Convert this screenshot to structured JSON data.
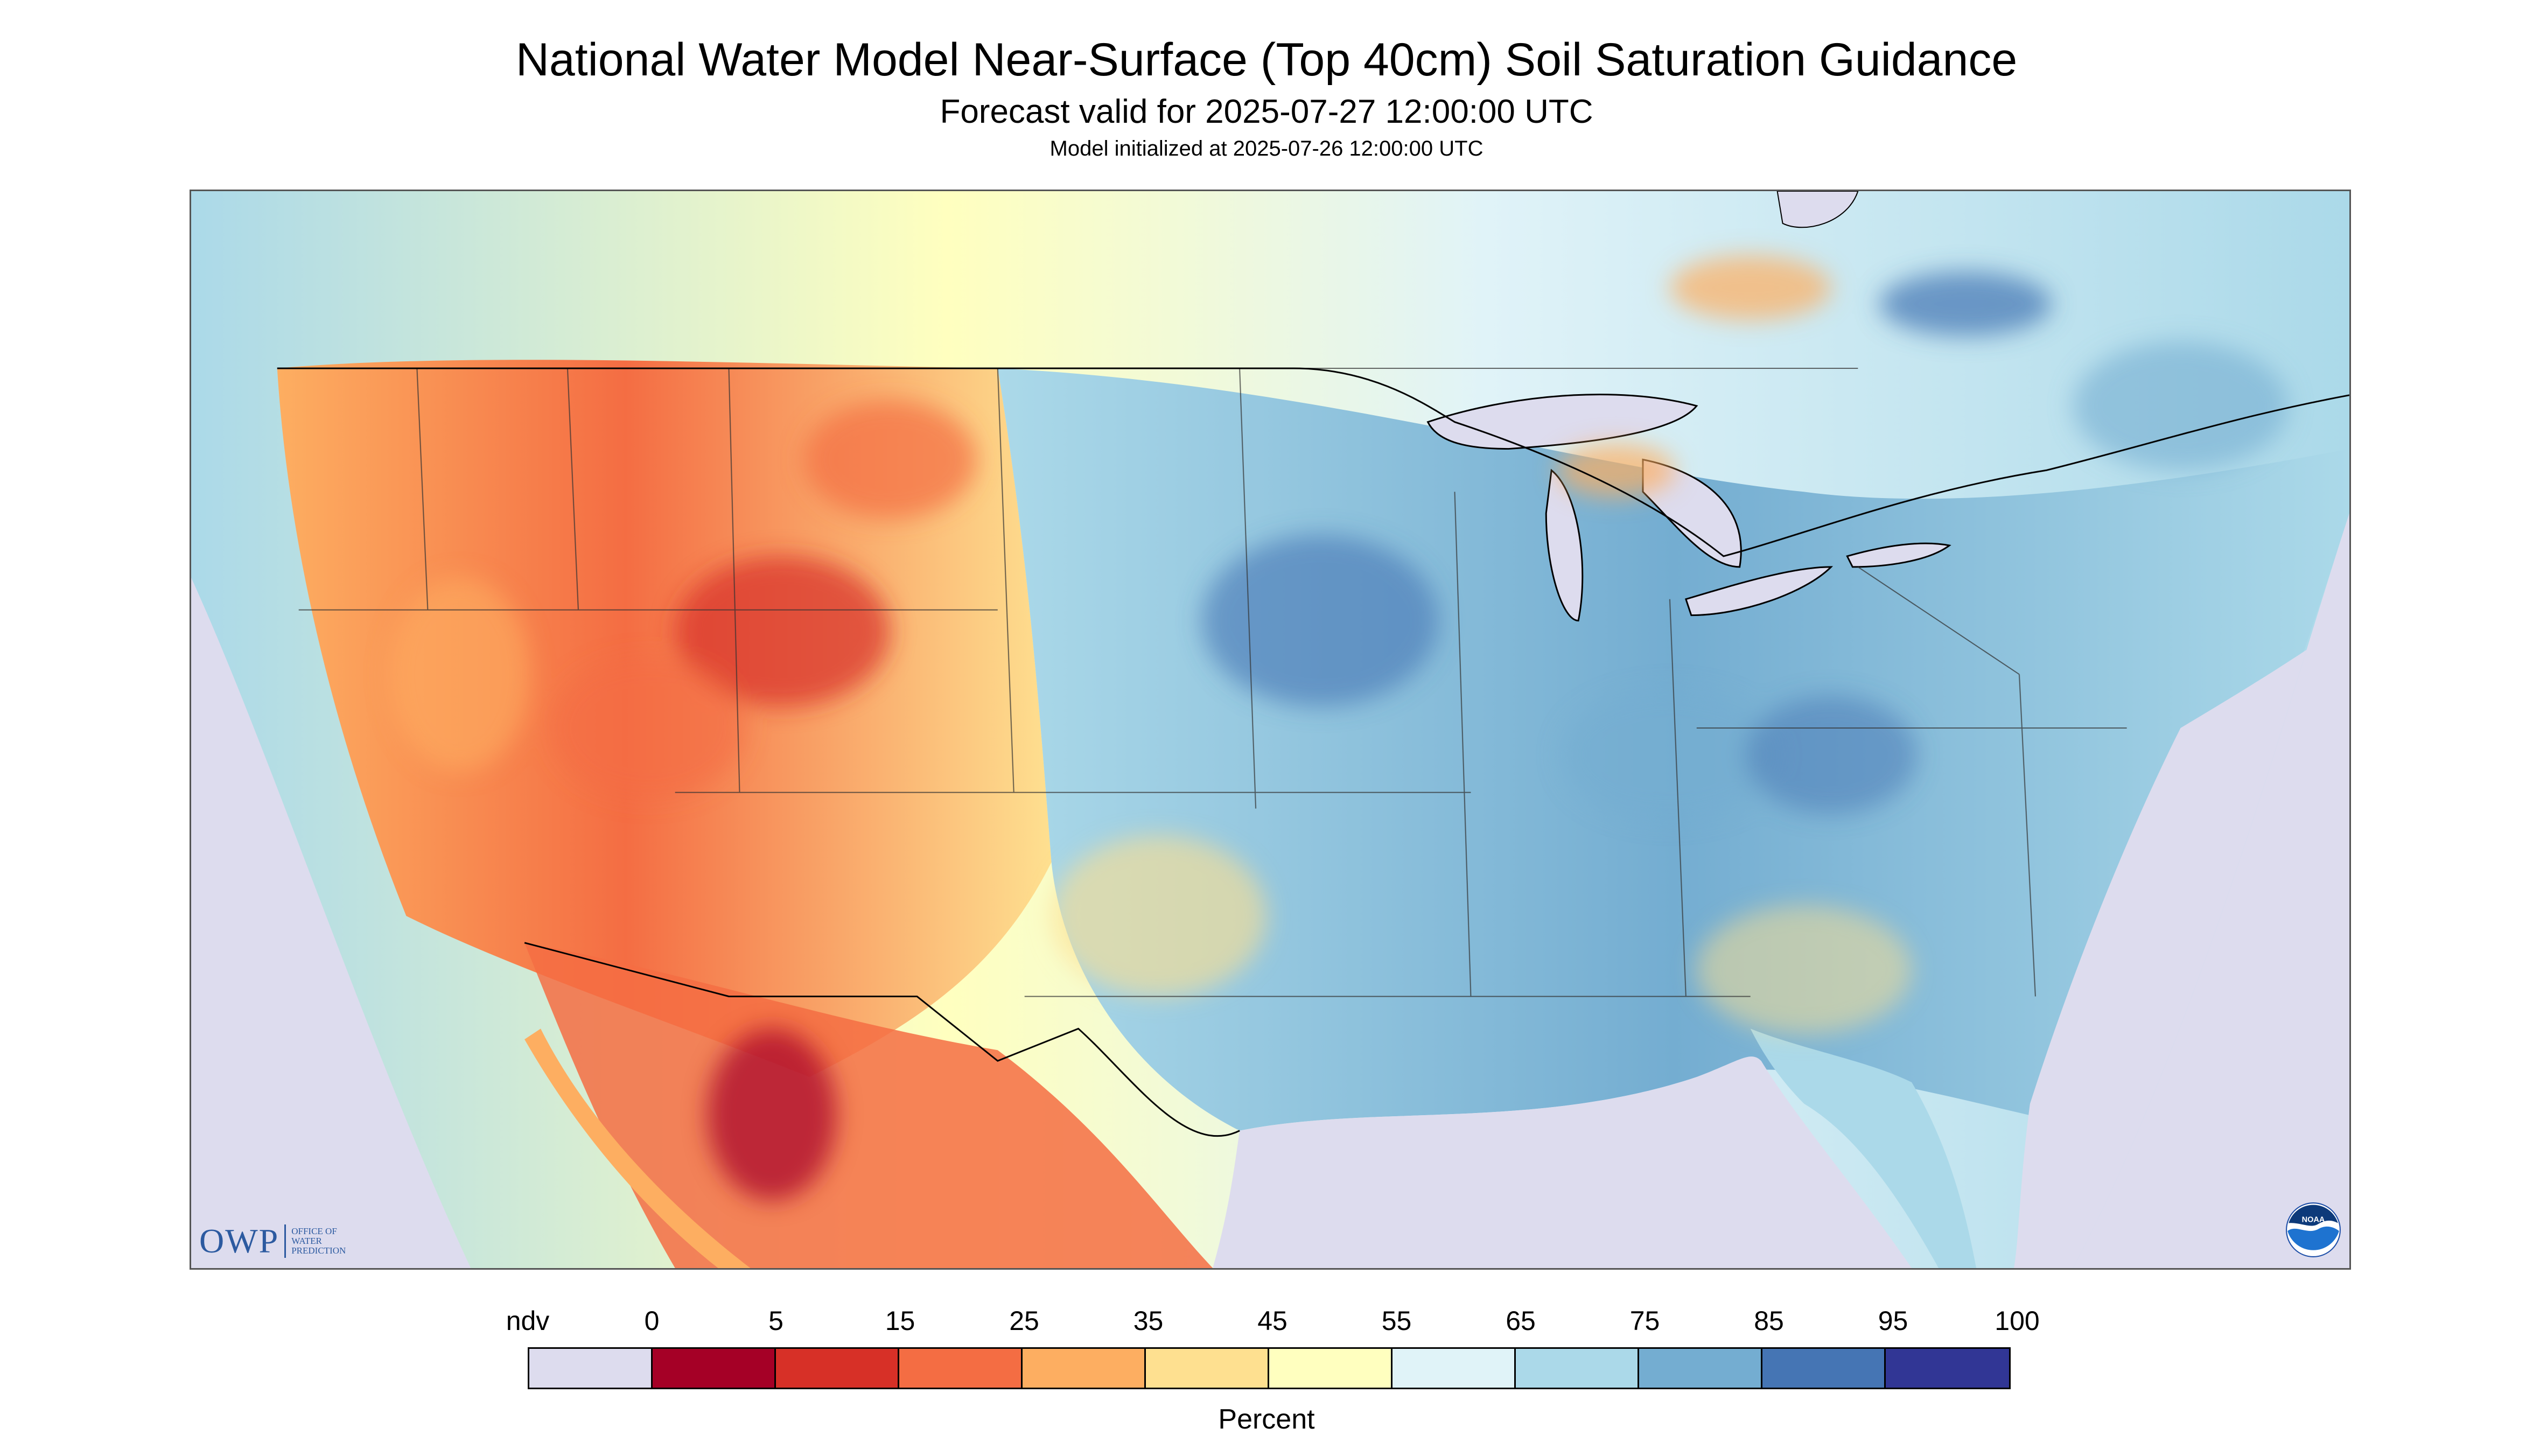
{
  "titles": {
    "main": "National Water Model Near-Surface (Top 40cm) Soil Saturation Guidance",
    "forecast": "Forecast valid for 2025-07-27 12:00:00 UTC",
    "initialized": "Model initialized at 2025-07-26 12:00:00 UTC"
  },
  "legend": {
    "ticks": [
      "ndv",
      "0",
      "5",
      "15",
      "25",
      "35",
      "45",
      "55",
      "65",
      "75",
      "85",
      "95",
      "100"
    ],
    "colors": [
      "#dddcee",
      "#a50026",
      "#d73027",
      "#f46d43",
      "#fdae61",
      "#fee090",
      "#ffffbf",
      "#e0f3f8",
      "#abd9e9",
      "#74add1",
      "#4575b4",
      "#313695"
    ],
    "unit": "Percent"
  },
  "logos": {
    "owp_letters": "OWP",
    "owp_text": "OFFICE OF\nWATER\nPREDICTION",
    "noaa": "NOAA"
  },
  "map": {
    "background_color": "#dddcee",
    "region": "Contiguous United States with southern Canada and northern Mexico"
  }
}
